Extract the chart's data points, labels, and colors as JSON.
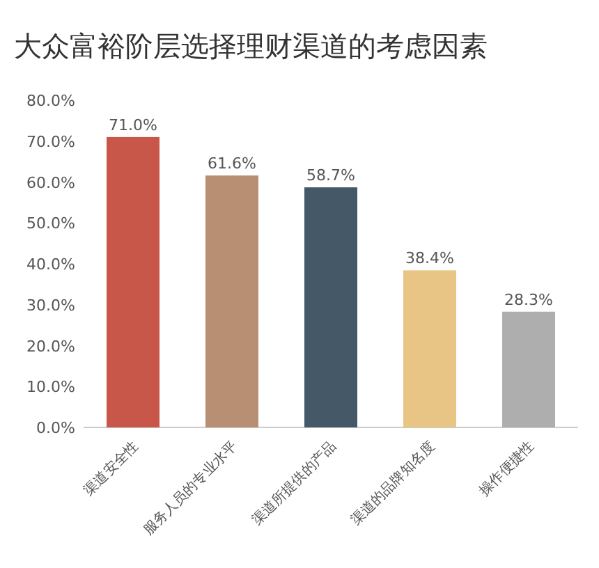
{
  "chart_data": {
    "type": "bar",
    "title": "大众富裕阶层选择理财渠道的考虑因素",
    "categories": [
      "渠道安全性",
      "服务人员的专业水平",
      "渠道所提供的产品",
      "渠道的品牌知名度",
      "操作便捷性"
    ],
    "values": [
      71.0,
      61.6,
      58.7,
      38.4,
      28.3
    ],
    "colors": [
      "#c8574a",
      "#b88f72",
      "#445868",
      "#e8c485",
      "#aeaeae"
    ],
    "ylim": [
      0,
      80
    ],
    "yticks": [
      {
        "value": 0,
        "label": "0.0%"
      },
      {
        "value": 10,
        "label": "10.0%"
      },
      {
        "value": 20,
        "label": "20.0%"
      },
      {
        "value": 30,
        "label": "30.0%"
      },
      {
        "value": 40,
        "label": "40.0%"
      },
      {
        "value": 50,
        "label": "50.0%"
      },
      {
        "value": 60,
        "label": "60.0%"
      },
      {
        "value": 70,
        "label": "70.0%"
      },
      {
        "value": 80,
        "label": "80.0%"
      }
    ],
    "value_labels": [
      "71.0%",
      "61.6%",
      "58.7%",
      "38.4%",
      "28.3%"
    ]
  }
}
